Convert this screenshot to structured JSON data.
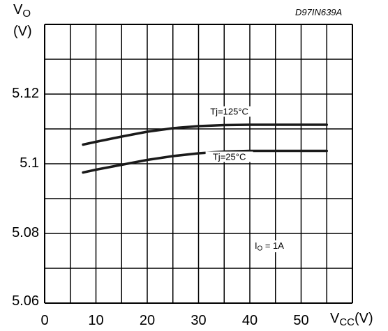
{
  "chart_data": {
    "type": "line",
    "code": "D97IN639A",
    "ylabel": {
      "main": "V",
      "sub": "O",
      "unit": "(V)"
    },
    "xlabel": {
      "main": "V",
      "sub": "CC",
      "unit": "(V)"
    },
    "xlim": [
      0,
      60
    ],
    "ylim": [
      5.06,
      5.14
    ],
    "x_ticks": [
      0,
      10,
      20,
      30,
      40,
      50
    ],
    "x_tick_labels": [
      "0",
      "10",
      "20",
      "30",
      "40",
      "50"
    ],
    "y_ticks": [
      5.06,
      5.08,
      5.1,
      5.12
    ],
    "y_tick_labels": [
      "5.06",
      "5.08",
      "5.1",
      "5.12"
    ],
    "grid": true,
    "grid_x_step": 5,
    "grid_y_step": 0.01,
    "series": [
      {
        "name": "Tj=125°C",
        "x": [
          7.5,
          10,
          15,
          20,
          25,
          30,
          35,
          40,
          45,
          50,
          55
        ],
        "y": [
          5.1055,
          5.1063,
          5.1078,
          5.1092,
          5.1102,
          5.1108,
          5.1111,
          5.1112,
          5.1112,
          5.1112,
          5.1112
        ]
      },
      {
        "name": "Tj=25°C",
        "x": [
          7.5,
          10,
          15,
          20,
          25,
          30,
          35,
          40,
          45,
          50,
          55
        ],
        "y": [
          5.0975,
          5.0983,
          5.0997,
          5.1011,
          5.1022,
          5.103,
          5.1035,
          5.1037,
          5.1037,
          5.1037,
          5.1037
        ]
      }
    ],
    "annotation": {
      "main": "I",
      "sub": "O",
      "rest": " = 1A"
    }
  }
}
